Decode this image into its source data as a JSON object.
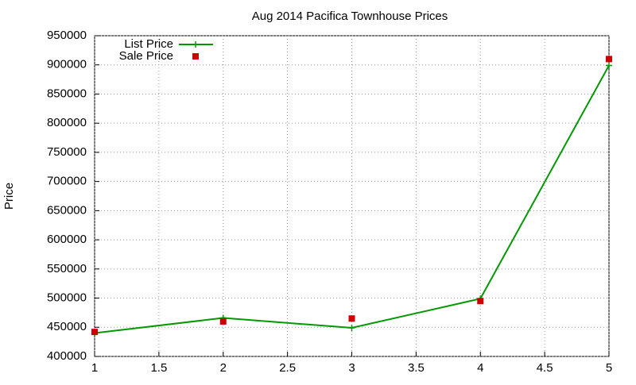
{
  "chart_data": {
    "type": "line",
    "title": "Aug 2014 Pacifica Townhouse Prices",
    "y_label": "Price",
    "x": [
      1,
      2,
      3,
      4,
      5
    ],
    "series": [
      {
        "name": "List Price",
        "color": "#009900",
        "line": true,
        "marker": "plus",
        "values": [
          440000,
          466000,
          449000,
          499000,
          899000
        ]
      },
      {
        "name": "Sale Price",
        "color": "#cc0000",
        "line": false,
        "marker": "square",
        "values": [
          442000,
          460000,
          465000,
          495000,
          910000
        ]
      }
    ],
    "xlim": [
      1,
      5
    ],
    "xticks": [
      1,
      1.5,
      2,
      2.5,
      3,
      3.5,
      4,
      4.5,
      5
    ],
    "ylim": [
      400000,
      950000
    ],
    "yticks": [
      400000,
      450000,
      500000,
      550000,
      600000,
      650000,
      700000,
      750000,
      800000,
      850000,
      900000,
      950000
    ],
    "grid": true,
    "legend": "top-left"
  }
}
